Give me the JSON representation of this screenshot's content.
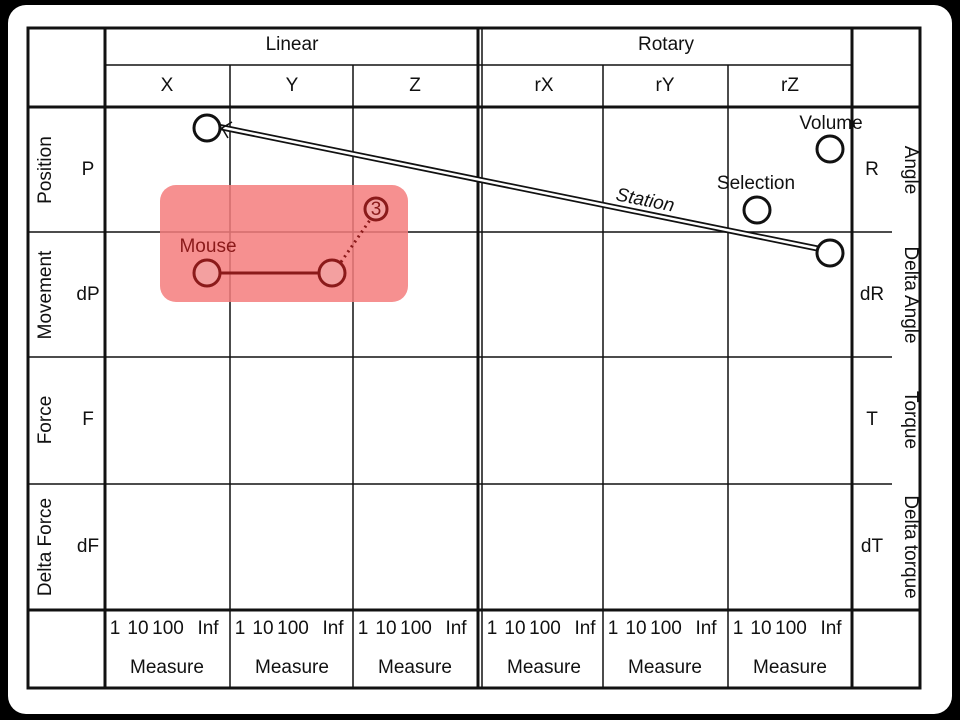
{
  "header": {
    "groups": [
      "Linear",
      "Rotary"
    ],
    "columns": [
      "X",
      "Y",
      "Z",
      "rX",
      "rY",
      "rZ"
    ]
  },
  "rows": [
    {
      "name": "Position",
      "symbol": "P",
      "right_symbol": "R",
      "right_name": "Angle"
    },
    {
      "name": "Movement",
      "symbol": "dP",
      "right_symbol": "dR",
      "right_name": "Delta Angle"
    },
    {
      "name": "Force",
      "symbol": "F",
      "right_symbol": "T",
      "right_name": "Torque"
    },
    {
      "name": "Delta Force",
      "symbol": "dF",
      "right_symbol": "dT",
      "right_name": "Delta torque"
    }
  ],
  "footer": {
    "scale": [
      "1",
      "10",
      "100",
      "Inf"
    ],
    "measure": "Measure"
  },
  "annotations": {
    "volume": "Volume",
    "selection": "Selection",
    "station": "Station",
    "mouse": "Mouse",
    "step": "3"
  }
}
